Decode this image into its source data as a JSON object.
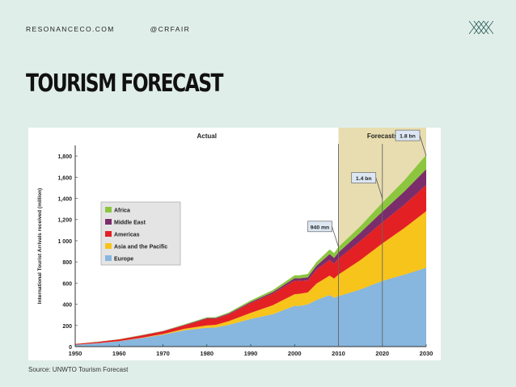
{
  "header": {
    "site": "RESONANCECO.COM",
    "handle": "@CRFAIR",
    "logo": "lattice-logo"
  },
  "slide": {
    "title": "TOURISM FORECAST",
    "source": "Source: UNWTO Tourism Forecast"
  },
  "colors": {
    "background": "#e0eee9",
    "forecast_band": "#e8ddb0",
    "africa": "#8cc63f",
    "middle_east": "#7b2d6b",
    "americas": "#e32124",
    "asia_pacific": "#f7c41b",
    "europe": "#87b6de"
  },
  "chart_data": {
    "type": "area",
    "stacked": true,
    "title": "",
    "xlabel": "",
    "ylabel": "International Tourist Arrivals received (million)",
    "xlim": [
      1950,
      2030
    ],
    "ylim": [
      0,
      1900
    ],
    "x_ticks": [
      1950,
      1960,
      1970,
      1980,
      1990,
      2000,
      2010,
      2020,
      2030
    ],
    "y_ticks": [
      0,
      200,
      400,
      600,
      800,
      1000,
      1200,
      1400,
      1600,
      1800
    ],
    "y_tick_labels": [
      "0",
      "200",
      "400",
      "600",
      "800",
      "1 000",
      "1,200",
      "1,400",
      "1,600",
      "1,800"
    ],
    "x": [
      1950,
      1955,
      1960,
      1965,
      1970,
      1975,
      1980,
      1982,
      1985,
      1990,
      1995,
      2000,
      2001,
      2003,
      2005,
      2008,
      2009,
      2010,
      2015,
      2020,
      2025,
      2030
    ],
    "series": [
      {
        "name": "Europe",
        "color": "#87b6de",
        "values": [
          17,
          31,
          50,
          79,
          113,
          155,
          178,
          180,
          205,
          262,
          305,
          385,
          383,
          398,
          440,
          487,
          462,
          476,
          540,
          620,
          680,
          744
        ]
      },
      {
        "name": "Asia and the Pacific",
        "color": "#f7c41b",
        "values": [
          0.2,
          1,
          1,
          3,
          6,
          14,
          23,
          25,
          35,
          56,
          85,
          110,
          115,
          113,
          155,
          184,
          181,
          204,
          277,
          355,
          440,
          535
        ]
      },
      {
        "name": "Americas",
        "color": "#e32124",
        "values": [
          8,
          12,
          17,
          22,
          26,
          33,
          62,
          58,
          65,
          93,
          110,
          128,
          122,
          114,
          133,
          148,
          141,
          150,
          180,
          199,
          220,
          248
        ]
      },
      {
        "name": "Middle East",
        "color": "#7b2d6b",
        "values": [
          0.2,
          0.5,
          1,
          2,
          2,
          4,
          7,
          7,
          8,
          10,
          14,
          24,
          25,
          30,
          37,
          55,
          53,
          60,
          80,
          101,
          125,
          149
        ]
      },
      {
        "name": "Africa",
        "color": "#8cc63f",
        "values": [
          0.5,
          1,
          1,
          2,
          2,
          5,
          7,
          8,
          10,
          15,
          19,
          26,
          28,
          31,
          35,
          44,
          46,
          50,
          60,
          85,
          105,
          134
        ]
      }
    ],
    "legend": {
      "placement": "upper-left",
      "entries": [
        "Africa",
        "Middle East",
        "Americas",
        "Asia and the Pacific",
        "Europe"
      ]
    },
    "regions": [
      {
        "label": "Actual",
        "from": 1950,
        "to": 2010
      },
      {
        "label": "Forecasts",
        "from": 2010,
        "to": 2030
      }
    ],
    "reference_lines": [
      2010,
      2020
    ],
    "annotations": [
      {
        "text": "940 mn",
        "x": 2010,
        "y": 940
      },
      {
        "text": "1.4 bn",
        "x": 2020,
        "y": 1400
      },
      {
        "text": "1.8 bn",
        "x": 2030,
        "y": 1800
      }
    ]
  }
}
